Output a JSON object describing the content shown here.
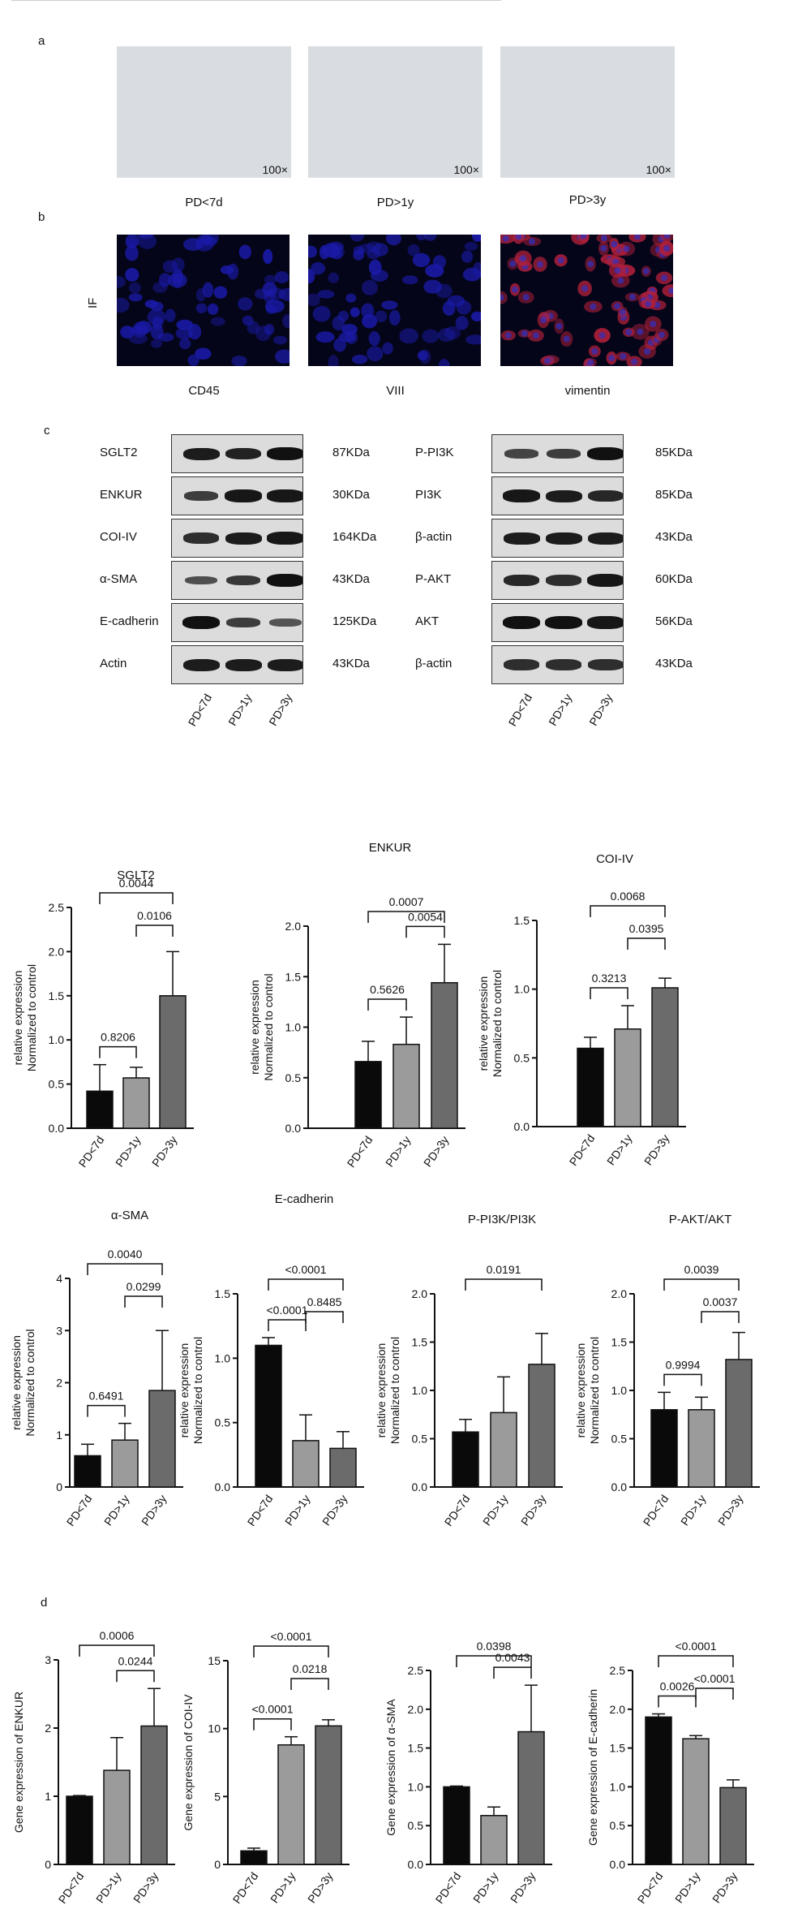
{
  "panel_labels": {
    "a": "a",
    "b": "b",
    "c": "c",
    "d": "d"
  },
  "panel_a": {
    "images": [
      {
        "caption": "PD<7d",
        "magnification": "100×"
      },
      {
        "caption": "PD>1y",
        "magnification": "100×"
      },
      {
        "caption": "PD>3y",
        "magnification": "100×"
      }
    ]
  },
  "panel_b": {
    "row_label": "IF",
    "images": [
      {
        "caption": "CD45",
        "stain": "#1a1aa8"
      },
      {
        "caption": "VIII",
        "stain": "#1a1aa8"
      },
      {
        "caption": "vimentin",
        "stain": "#b0203a"
      }
    ]
  },
  "panel_c_blots": {
    "left": [
      {
        "protein": "SGLT2",
        "kda": "87KDa",
        "intensity": [
          0.9,
          0.85,
          1.0
        ]
      },
      {
        "protein": "ENKUR",
        "kda": "30KDa",
        "intensity": [
          0.6,
          0.95,
          0.95
        ]
      },
      {
        "protein": "COI-IV",
        "kda": "164KDa",
        "intensity": [
          0.75,
          0.9,
          0.95
        ]
      },
      {
        "protein": "α-SMA",
        "kda": "43KDa",
        "intensity": [
          0.45,
          0.65,
          1.0
        ]
      },
      {
        "protein": "E-cadherin",
        "kda": "125KDa",
        "intensity": [
          1.0,
          0.6,
          0.4
        ]
      },
      {
        "protein": "Actin",
        "kda": "43KDa",
        "intensity": [
          0.9,
          0.9,
          0.9
        ]
      }
    ],
    "right": [
      {
        "protein": "P-PI3K",
        "kda": "85KDa",
        "intensity": [
          0.55,
          0.6,
          1.0
        ]
      },
      {
        "protein": "PI3K",
        "kda": "85KDa",
        "intensity": [
          0.95,
          0.9,
          0.8
        ]
      },
      {
        "protein": "β-actin",
        "kda": "43KDa",
        "intensity": [
          0.9,
          0.9,
          0.9
        ]
      },
      {
        "protein": "P-AKT",
        "kda": "60KDa",
        "intensity": [
          0.8,
          0.75,
          0.95
        ]
      },
      {
        "protein": "AKT",
        "kda": "56KDa",
        "intensity": [
          1.0,
          1.0,
          0.95
        ]
      },
      {
        "protein": "β-actin",
        "kda": "43KDa",
        "intensity": [
          0.75,
          0.75,
          0.75
        ]
      }
    ],
    "lanes": [
      "PD<7d",
      "PD>1y",
      "PD>3y"
    ]
  },
  "colors": {
    "bar1": "#0a0a0a",
    "bar2": "#9b9b9b",
    "bar3": "#6b6b6b"
  },
  "chart_data": [
    {
      "type": "bar",
      "title": "SGLT2",
      "ylabel": "relative expression\nNormalized to control",
      "categories": [
        "PD<7d",
        "PD>1y",
        "PD>3y"
      ],
      "values": [
        0.42,
        0.57,
        1.5
      ],
      "errors": [
        0.3,
        0.12,
        0.5
      ],
      "ylim": [
        0,
        2.5
      ],
      "yticks": [
        "0.0",
        "0.5",
        "1.0",
        "1.5",
        "2.0",
        "2.5"
      ],
      "comparisons": [
        {
          "from": 0,
          "to": 1,
          "label": "0.8206"
        },
        {
          "from": 1,
          "to": 2,
          "label": "0.0106"
        },
        {
          "from": 0,
          "to": 2,
          "label": "0.0044"
        }
      ]
    },
    {
      "type": "bar",
      "title": "ENKUR",
      "ylabel": "relative expression\nNormalized to control",
      "categories": [
        "PD<7d",
        "PD>1y",
        "PD>3y"
      ],
      "values": [
        0.66,
        0.83,
        1.44
      ],
      "errors": [
        0.2,
        0.27,
        0.38
      ],
      "ylim": [
        0,
        2.0
      ],
      "yticks": [
        "0.0",
        "0.5",
        "1.0",
        "1.5",
        "2.0"
      ],
      "comparisons": [
        {
          "from": 0,
          "to": 1,
          "label": "0.5626"
        },
        {
          "from": 1,
          "to": 2,
          "label": "0.0054"
        },
        {
          "from": 0,
          "to": 2,
          "label": "0.0007"
        }
      ]
    },
    {
      "type": "bar",
      "title": "COI-IV",
      "ylabel": "relative expression\nNormalized to control",
      "categories": [
        "PD<7d",
        "PD>1y",
        "PD>3y"
      ],
      "values": [
        0.57,
        0.71,
        1.01
      ],
      "errors": [
        0.08,
        0.17,
        0.07
      ],
      "ylim": [
        0,
        1.5
      ],
      "yticks": [
        "0.0",
        "0.5",
        "1.0",
        "1.5"
      ],
      "comparisons": [
        {
          "from": 0,
          "to": 1,
          "label": "0.3213"
        },
        {
          "from": 1,
          "to": 2,
          "label": "0.0395"
        },
        {
          "from": 0,
          "to": 2,
          "label": "0.0068"
        }
      ]
    },
    {
      "type": "bar",
      "title": "α-SMA",
      "ylabel": "relative expression\nNormalized to control",
      "categories": [
        "PD<7d",
        "PD>1y",
        "PD>3y"
      ],
      "values": [
        0.6,
        0.9,
        1.85
      ],
      "errors": [
        0.22,
        0.32,
        1.15
      ],
      "ylim": [
        0,
        4
      ],
      "yticks": [
        "0",
        "1",
        "2",
        "3",
        "4"
      ],
      "comparisons": [
        {
          "from": 0,
          "to": 1,
          "label": "0.6491"
        },
        {
          "from": 1,
          "to": 2,
          "label": "0.0299"
        },
        {
          "from": 0,
          "to": 2,
          "label": "0.0040"
        }
      ]
    },
    {
      "type": "bar",
      "title": "E-cadherin",
      "ylabel": "relative expression\nNormalized to control",
      "categories": [
        "PD<7d",
        "PD>1y",
        "PD>3y"
      ],
      "values": [
        1.1,
        0.36,
        0.3
      ],
      "errors": [
        0.06,
        0.2,
        0.13
      ],
      "ylim": [
        0,
        1.5
      ],
      "yticks": [
        "0.0",
        "0.5",
        "1.0",
        "1.5"
      ],
      "comparisons": [
        {
          "from": 0,
          "to": 1,
          "label": "<0.0001"
        },
        {
          "from": 1,
          "to": 2,
          "label": "0.8485"
        },
        {
          "from": 0,
          "to": 2,
          "label": "<0.0001"
        }
      ]
    },
    {
      "type": "bar",
      "title": "P-PI3K/PI3K",
      "ylabel": "relative expression\nNormalized to control",
      "categories": [
        "PD<7d",
        "PD>1y",
        "PD>3y"
      ],
      "values": [
        0.57,
        0.77,
        1.27
      ],
      "errors": [
        0.13,
        0.37,
        0.32
      ],
      "ylim": [
        0,
        2.0
      ],
      "yticks": [
        "0.0",
        "0.5",
        "1.0",
        "1.5",
        "2.0"
      ],
      "comparisons": [
        {
          "from": 0,
          "to": 2,
          "label": "0.0191"
        }
      ]
    },
    {
      "type": "bar",
      "title": "P-AKT/AKT",
      "ylabel": "relative expression\nNormalized to control",
      "categories": [
        "PD<7d",
        "PD>1y",
        "PD>3y"
      ],
      "values": [
        0.8,
        0.8,
        1.32
      ],
      "errors": [
        0.18,
        0.13,
        0.28
      ],
      "ylim": [
        0,
        2.0
      ],
      "yticks": [
        "0.0",
        "0.5",
        "1.0",
        "1.5",
        "2.0"
      ],
      "comparisons": [
        {
          "from": 0,
          "to": 1,
          "label": "0.9994"
        },
        {
          "from": 1,
          "to": 2,
          "label": "0.0037"
        },
        {
          "from": 0,
          "to": 2,
          "label": "0.0039"
        }
      ]
    },
    {
      "type": "bar",
      "title": "",
      "ylabel": "Gene expression of ENKUR",
      "categories": [
        "PD<7d",
        "PD>1y",
        "PD>3y"
      ],
      "values": [
        1.0,
        1.38,
        2.03
      ],
      "errors": [
        0.01,
        0.48,
        0.55
      ],
      "ylim": [
        0,
        3
      ],
      "yticks": [
        "0",
        "1",
        "2",
        "3"
      ],
      "comparisons": [
        {
          "from": 1,
          "to": 2,
          "label": "0.0244"
        },
        {
          "from": 0,
          "to": 2,
          "label": "0.0006"
        }
      ]
    },
    {
      "type": "bar",
      "title": "",
      "ylabel": "Gene expression of COI-IV",
      "categories": [
        "PD<7d",
        "PD>1y",
        "PD>3y"
      ],
      "values": [
        1.0,
        8.8,
        10.2
      ],
      "errors": [
        0.2,
        0.6,
        0.45
      ],
      "ylim": [
        0,
        15
      ],
      "yticks": [
        "0",
        "5",
        "10",
        "15"
      ],
      "comparisons": [
        {
          "from": 0,
          "to": 1,
          "label": "<0.0001"
        },
        {
          "from": 1,
          "to": 2,
          "label": "0.0218"
        },
        {
          "from": 0,
          "to": 2,
          "label": "<0.0001"
        }
      ]
    },
    {
      "type": "bar",
      "title": "",
      "ylabel": "Gene expression of α-SMA",
      "categories": [
        "PD<7d",
        "PD>1y",
        "PD>3y"
      ],
      "values": [
        1.0,
        0.63,
        1.71
      ],
      "errors": [
        0.01,
        0.11,
        0.6
      ],
      "ylim": [
        0,
        2.5
      ],
      "yticks": [
        "0.0",
        "0.5",
        "1.0",
        "1.5",
        "2.0",
        "2.5"
      ],
      "comparisons": [
        {
          "from": 1,
          "to": 2,
          "label": "0.0043"
        },
        {
          "from": 0,
          "to": 2,
          "label": "0.0398"
        }
      ]
    },
    {
      "type": "bar",
      "title": "",
      "ylabel": "Gene expression of E-cadherin",
      "categories": [
        "PD<7d",
        "PD>1y",
        "PD>3y"
      ],
      "values": [
        1.9,
        1.62,
        0.99
      ],
      "errors": [
        0.04,
        0.04,
        0.1
      ],
      "ylim": [
        0,
        2.5
      ],
      "yticks": [
        "0.0",
        "0.5",
        "1.0",
        "1.5",
        "2.0",
        "2.5"
      ],
      "comparisons": [
        {
          "from": 0,
          "to": 1,
          "label": "0.0026"
        },
        {
          "from": 1,
          "to": 2,
          "label": "<0.0001"
        },
        {
          "from": 0,
          "to": 2,
          "label": "<0.0001"
        }
      ]
    }
  ]
}
